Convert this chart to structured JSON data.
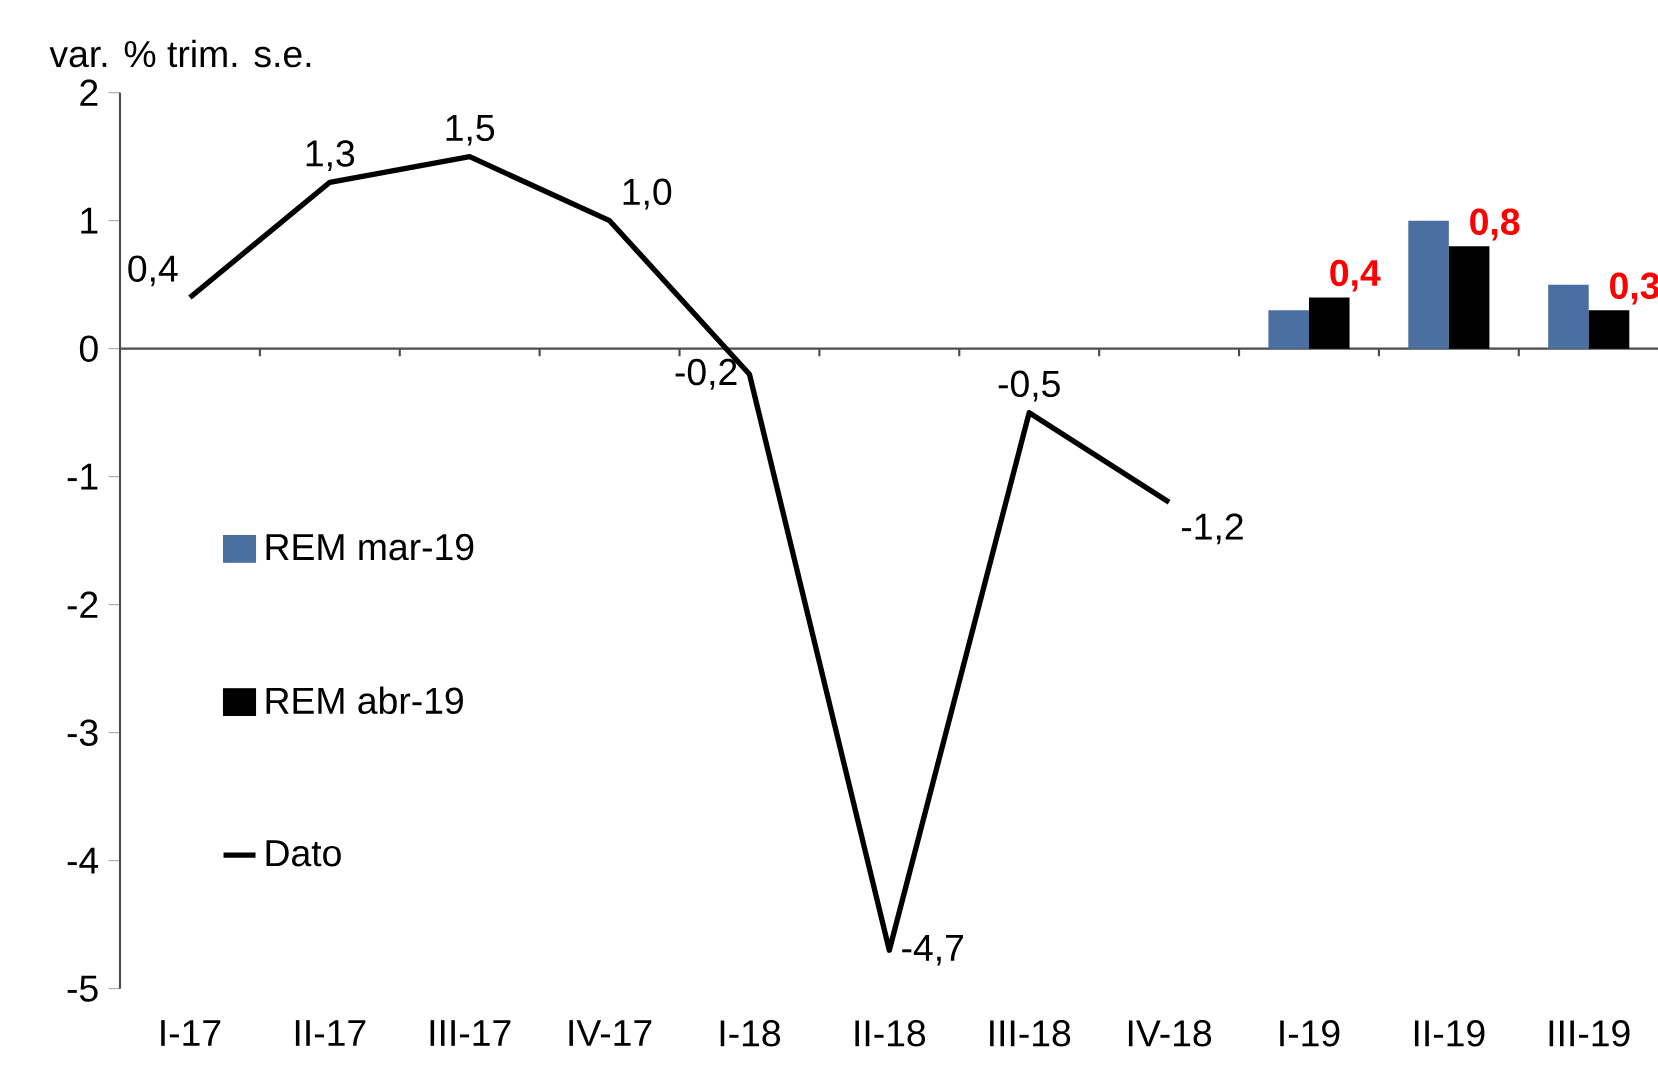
{
  "chart_data": {
    "type": "bar",
    "ylabel": "var. % trim. s.e.",
    "categories": [
      "I-17",
      "II-17",
      "III-17",
      "IV-17",
      "I-18",
      "II-18",
      "III-18",
      "IV-18",
      "I-19",
      "II-19",
      "III-19"
    ],
    "series": [
      {
        "name": "REM mar-19",
        "color": "#4a6fa0",
        "values": [
          null,
          null,
          null,
          null,
          null,
          null,
          null,
          null,
          0.3,
          1.0,
          0.5
        ]
      },
      {
        "name": "REM abr-19",
        "color": "#000000",
        "values": [
          null,
          null,
          null,
          null,
          null,
          null,
          null,
          null,
          0.4,
          0.8,
          0.3
        ],
        "value_labels": [
          null,
          null,
          null,
          null,
          null,
          null,
          null,
          null,
          "0,4",
          "0,8",
          "0,3"
        ]
      },
      {
        "name": "Dato",
        "type": "line",
        "color": "#000000",
        "values": [
          0.4,
          1.3,
          1.5,
          1.0,
          -0.2,
          -4.7,
          -0.5,
          -1.2,
          null,
          null,
          null
        ],
        "value_labels": [
          "0,4",
          "1,3",
          "1,5",
          "1,0",
          "-0,2",
          "-4,7",
          "-0,5",
          "-1,2",
          null,
          null,
          null
        ]
      }
    ],
    "ylim": [
      -5,
      2
    ],
    "yticks": [
      -5,
      -4,
      -3,
      -2,
      -1,
      0,
      1,
      2
    ],
    "legend": "left"
  }
}
